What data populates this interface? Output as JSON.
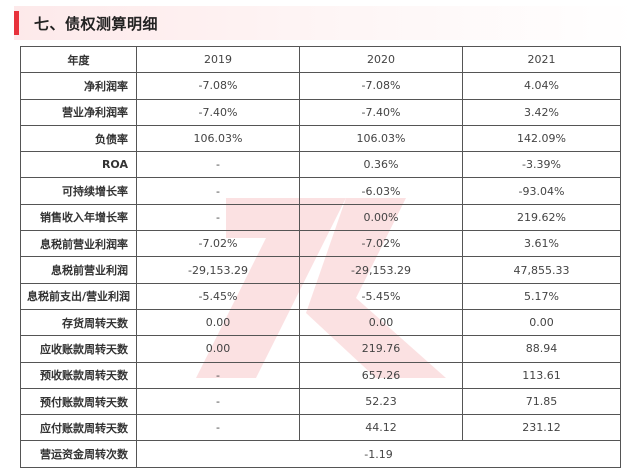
{
  "section": {
    "title": "七、债权测算明细"
  },
  "table": {
    "header": {
      "label": "年度",
      "years": [
        "2019",
        "2020",
        "2021"
      ]
    },
    "rows": [
      {
        "label": "净利润率",
        "values": [
          "-7.08%",
          "-7.08%",
          "4.04%"
        ]
      },
      {
        "label": "营业净利润率",
        "values": [
          "-7.40%",
          "-7.40%",
          "3.42%"
        ]
      },
      {
        "label": "负债率",
        "values": [
          "106.03%",
          "106.03%",
          "142.09%"
        ]
      },
      {
        "label": "ROA",
        "values": [
          "-",
          "0.36%",
          "-3.39%"
        ]
      },
      {
        "label": "可持续增长率",
        "values": [
          "-",
          "-6.03%",
          "-93.04%"
        ]
      },
      {
        "label": "销售收入年增长率",
        "values": [
          "-",
          "0.00%",
          "219.62%"
        ]
      },
      {
        "label": "息税前营业利润率",
        "values": [
          "-7.02%",
          "-7.02%",
          "3.61%"
        ]
      },
      {
        "label": "息税前营业利润",
        "values": [
          "-29,153.29",
          "-29,153.29",
          "47,855.33"
        ]
      },
      {
        "label": "息税前支出/营业利润",
        "values": [
          "-5.45%",
          "-5.45%",
          "5.17%"
        ]
      },
      {
        "label": "存货周转天数",
        "values": [
          "0.00",
          "0.00",
          "0.00"
        ]
      },
      {
        "label": "应收账款周转天数",
        "values": [
          "0.00",
          "219.76",
          "88.94"
        ]
      },
      {
        "label": "预收账款周转天数",
        "values": [
          "-",
          "657.26",
          "113.61"
        ]
      },
      {
        "label": "预付账款周转天数",
        "values": [
          "-",
          "52.23",
          "71.85"
        ]
      },
      {
        "label": "应付账款周转天数",
        "values": [
          "-",
          "44.12",
          "231.12"
        ]
      }
    ],
    "last_row": {
      "label": "营运资金周转次数",
      "value": "-1.19"
    }
  },
  "colors": {
    "accent": "#e8323c",
    "header_bg": "#fde9ea",
    "watermark": "#e8323c"
  }
}
